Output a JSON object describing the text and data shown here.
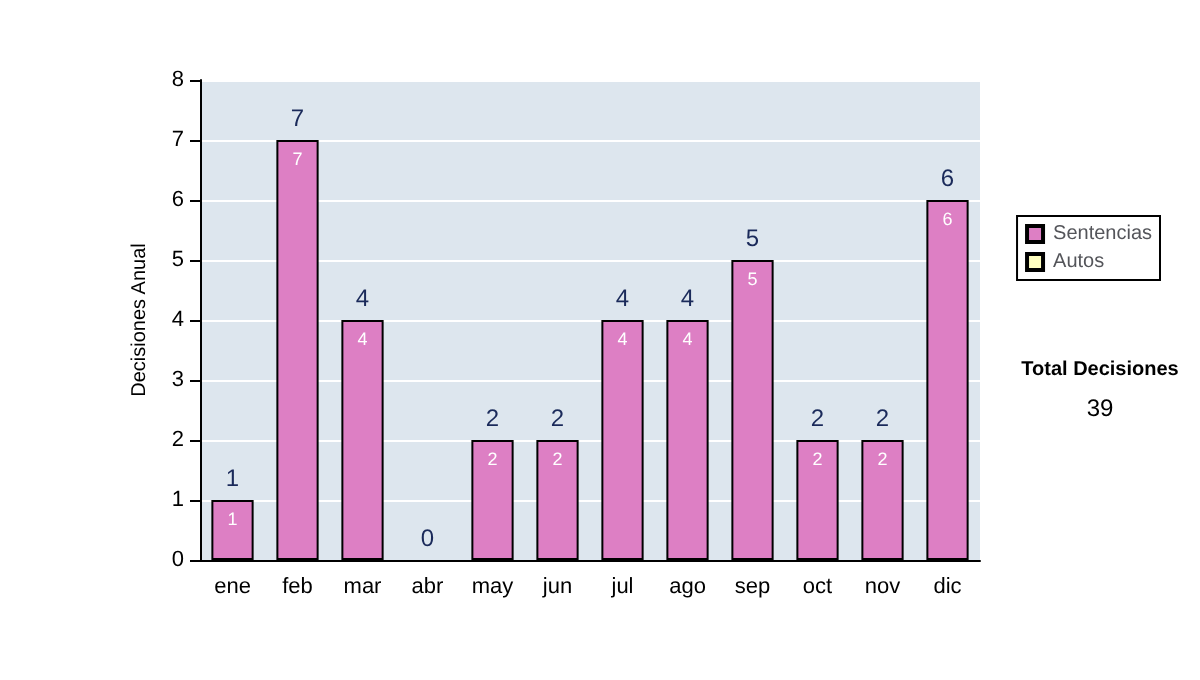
{
  "chart_data": {
    "type": "bar",
    "ylabel": "Decisiones Anual",
    "categories": [
      "ene",
      "feb",
      "mar",
      "abr",
      "may",
      "jun",
      "jul",
      "ago",
      "sep",
      "oct",
      "nov",
      "dic"
    ],
    "series": [
      {
        "name": "Sentencias",
        "color": "#dd7fc4",
        "values": [
          1,
          7,
          4,
          0,
          2,
          2,
          4,
          4,
          5,
          2,
          2,
          6
        ],
        "value_labels": [
          "1",
          "7",
          "4",
          null,
          "2",
          "2",
          "4",
          "4",
          "5",
          "2",
          "2",
          "6"
        ]
      },
      {
        "name": "Autos",
        "color": "#ffffc0",
        "values": [
          0,
          0,
          0,
          0,
          0,
          0,
          0,
          0,
          0,
          0,
          0,
          0
        ]
      }
    ],
    "stacked": true,
    "totals": [
      "1",
      "7",
      "4",
      "0",
      "2",
      "2",
      "4",
      "4",
      "5",
      "2",
      "2",
      "6"
    ],
    "ylim": [
      0,
      8
    ],
    "yticks": [
      0,
      1,
      2,
      3,
      4,
      5,
      6,
      7,
      8
    ],
    "grid": "y",
    "legend": "right",
    "annotations": [
      "Total Decisiones",
      "39"
    ]
  }
}
